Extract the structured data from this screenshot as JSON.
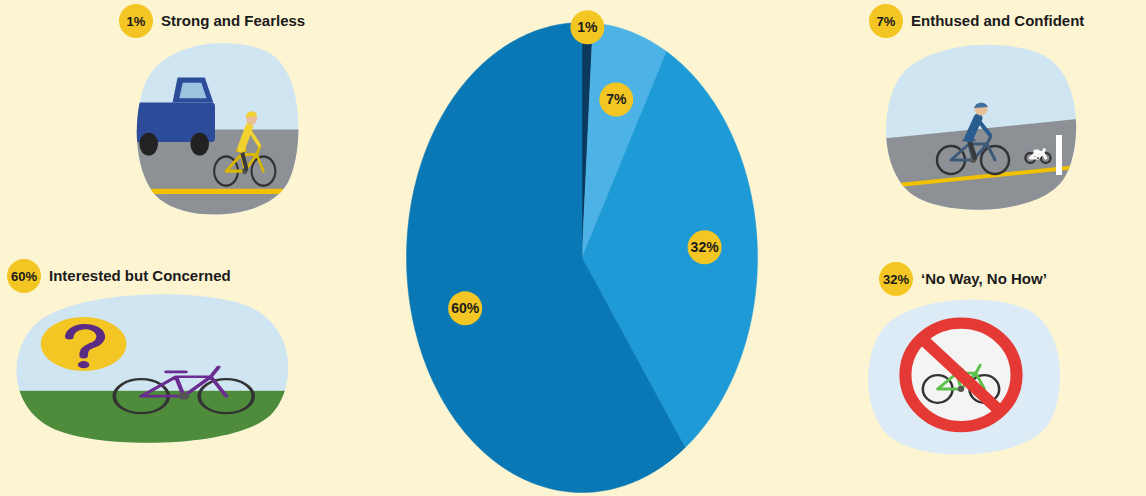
{
  "chart_data": {
    "type": "pie",
    "categories": [
      "Strong and Fearless",
      "Enthused and Confident",
      "‘No Way, No How’",
      "Interested but Concerned"
    ],
    "values": [
      1,
      7,
      32,
      60
    ],
    "value_labels": [
      "1%",
      "7%",
      "32%",
      "60%"
    ],
    "colors": [
      "#0b3a5e",
      "#4db3e6",
      "#1e9bd7",
      "#0a78b4"
    ],
    "data_labels": true
  }
}
